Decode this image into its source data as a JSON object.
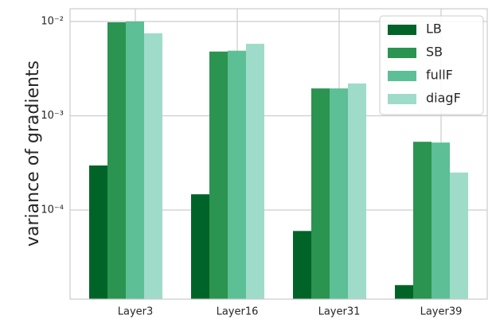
{
  "chart_data": {
    "type": "bar",
    "y_label": "variance of gradients",
    "log_scale_y": true,
    "grid": true,
    "legend_position": "upper right",
    "categories": [
      "Layer3",
      "Layer16",
      "Layer31",
      "Layer39"
    ],
    "series": [
      {
        "name": "LB",
        "color": "#006428",
        "values": [
          0.000297,
          0.000147,
          6e-05,
          1.6e-05
        ]
      },
      {
        "name": "SB",
        "color": "#2a9450",
        "values": [
          0.0098,
          0.0048,
          0.00195,
          0.00053
        ]
      },
      {
        "name": "fullF",
        "color": "#5cbf95",
        "values": [
          0.01,
          0.0049,
          0.00195,
          0.00052
        ]
      },
      {
        "name": "diagF",
        "color": "#9fdbc9",
        "values": [
          0.0075,
          0.0058,
          0.0022,
          0.00025
        ]
      }
    ],
    "ylim": [
      1.135e-05,
      0.01365
    ],
    "yticks": [
      {
        "value": 0.0001,
        "label": "10⁻⁴"
      },
      {
        "value": 0.001,
        "label": "10⁻³"
      },
      {
        "value": 0.01,
        "label": "10⁻²"
      }
    ]
  }
}
